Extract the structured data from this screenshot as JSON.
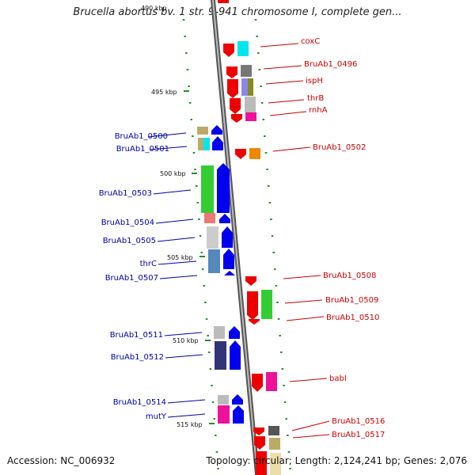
{
  "title": "Brucella abortus bv. 1 str. 9-941 chromosome I, complete gen...",
  "footer": {
    "accession": "Accession: NC_006932",
    "summary": "Topology: circular; Length: 2,124,241 bp; Genes: 2,076"
  },
  "scale_labels": [
    "490 kbp",
    "495 kbp",
    "500 kbp",
    "505 kbp",
    "510 kbp",
    "515 kbp"
  ],
  "colors": {
    "backbone": "#8a8a8a",
    "tick": "#2b8a2b",
    "right_label": "#cc0000",
    "left_label": "#0000aa",
    "forward_strand": "#0000ee",
    "reverse_strand": "#ee0000"
  },
  "right_labels": [
    "coxC",
    "BruAb1_0496",
    "ispH",
    "thrB",
    "rnhA",
    "BruAb1_0502",
    "BruAb1_0508",
    "BruAb1_0509",
    "BruAb1_0510",
    "babI",
    "BruAb1_0516",
    "BruAb1_0517"
  ],
  "left_labels": [
    "BruAb1_0500",
    "BruAb1_0501",
    "BruAb1_0503",
    "BruAb1_0504",
    "BruAb1_0505",
    "thrC",
    "BruAb1_0507",
    "BruAb1_0511",
    "BruAb1_0512",
    "BruAb1_0514",
    "mutY"
  ]
}
